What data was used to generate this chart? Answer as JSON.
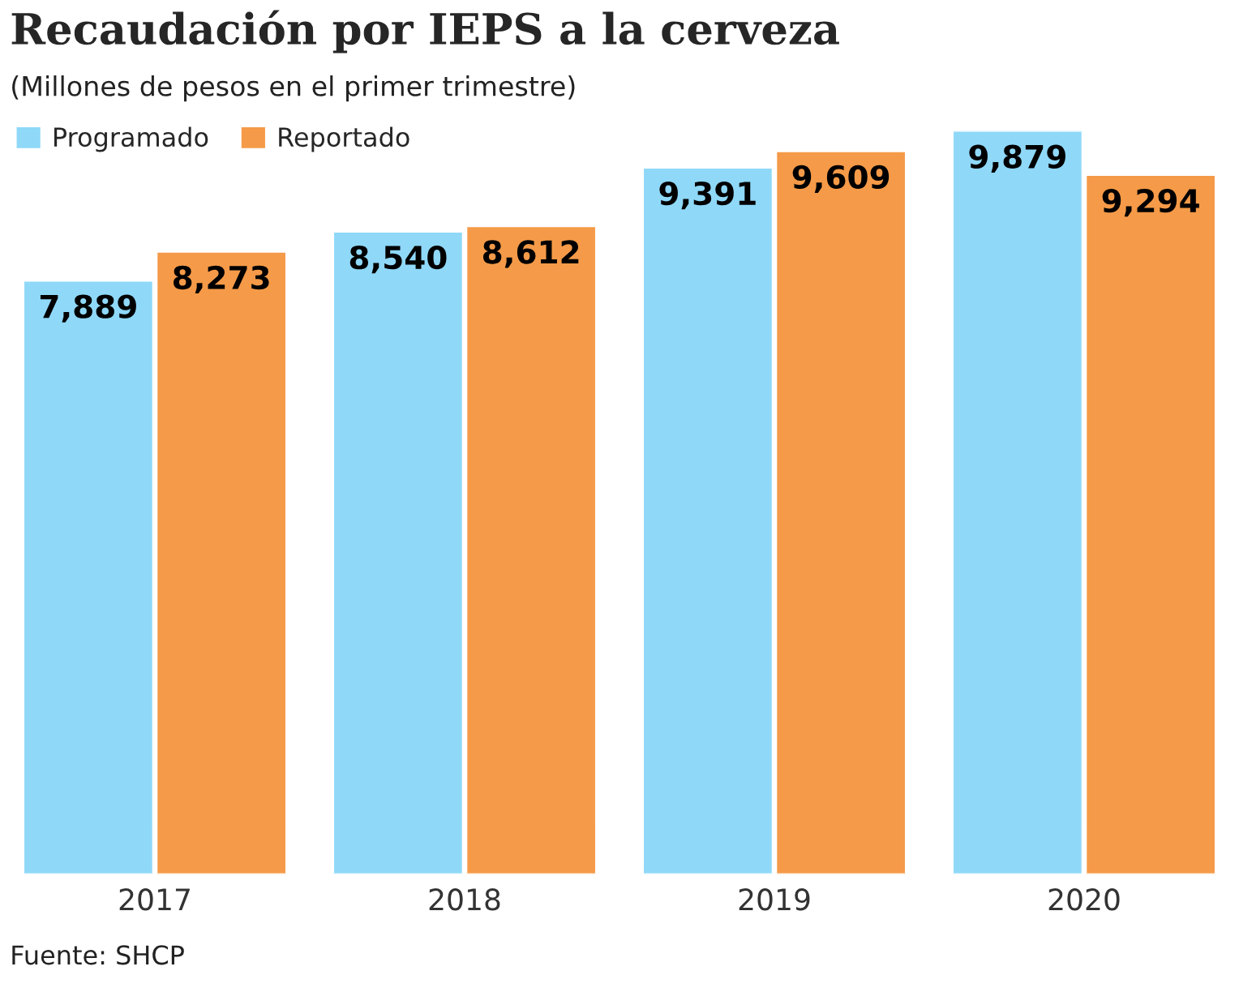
{
  "chart_data": {
    "type": "bar",
    "title": "Recaudación por IEPS a la cerveza",
    "subtitle": "(Millones de pesos en el primer trimestre)",
    "categories": [
      "2017",
      "2018",
      "2019",
      "2020"
    ],
    "series": [
      {
        "name": "Programado",
        "color": "#8fd8f8",
        "values": [
          7889,
          8540,
          9391,
          9879
        ],
        "value_labels": [
          "7,889",
          "8,540",
          "9,391",
          "9,879"
        ]
      },
      {
        "name": "Reportado",
        "color": "#f59a48",
        "values": [
          8273,
          8612,
          9609,
          9294
        ],
        "value_labels": [
          "8,273",
          "8,612",
          "9,609",
          "9,294"
        ]
      }
    ],
    "legend": "top left",
    "grid": false,
    "annotations": [
      "Fuente: SHCP"
    ]
  }
}
